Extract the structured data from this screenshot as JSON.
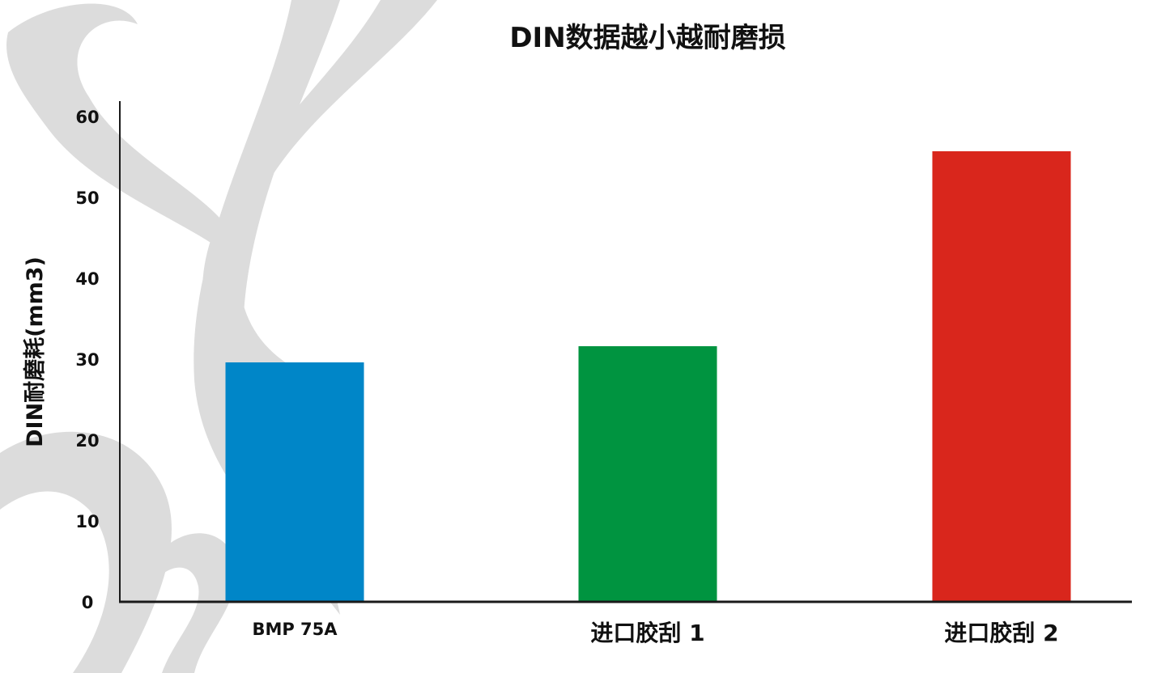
{
  "chart_data": {
    "type": "bar",
    "title": "DIN数据越小越耐磨损",
    "xlabel": "",
    "ylabel": "DIN耐磨耗(mm3)",
    "categories": [
      "BMP 75A",
      "进口胶刮 1",
      "进口胶刮 2"
    ],
    "values": [
      29.6,
      31.6,
      55.7
    ],
    "bar_colors": [
      "#0086c8",
      "#009440",
      "#d9261c"
    ],
    "ylim": [
      0,
      60
    ],
    "yticks": [
      0,
      10,
      20,
      30,
      40,
      50,
      60
    ],
    "grid": false,
    "legend": "none"
  },
  "colors": {
    "axis": "#1a1a1a",
    "watermark": "#d9d9d9"
  }
}
